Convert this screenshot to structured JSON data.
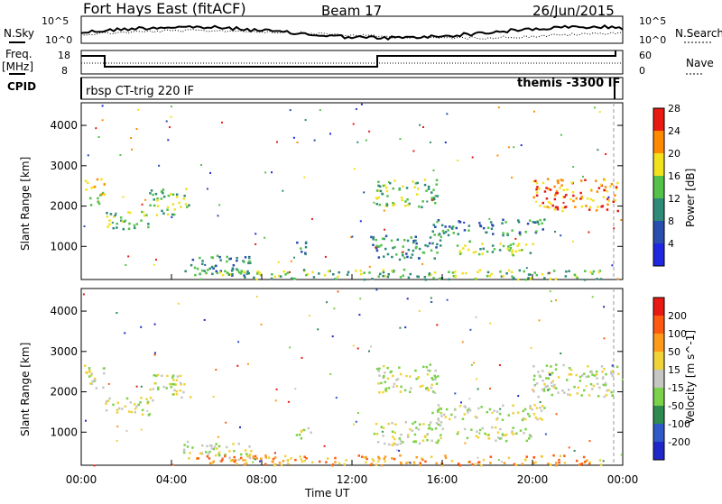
{
  "header": {
    "title": "Fort Hays East (fitACF)",
    "beam": "Beam 17",
    "date": "26/Jun/2015"
  },
  "noise_panel": {
    "left_label": "N.Sky",
    "right_label": "N.Search",
    "left_ticks": [
      "10^5",
      "10^0"
    ],
    "right_ticks": [
      "10^5",
      "10^0"
    ]
  },
  "freq_panel": {
    "left_label_1": "Freq.",
    "left_label_2": "[MHz]",
    "right_label": "Nave",
    "left_ticks": [
      "18",
      "8"
    ],
    "right_ticks": [
      "60",
      "0"
    ]
  },
  "cpid_panel": {
    "label": "CPID",
    "left_mode": "rbsp CT-trig 220 IF",
    "right_mode": "themis -3300 IF"
  },
  "chart_data": [
    {
      "type": "heatmap",
      "name_panel": "power",
      "ylabel": "Slant Range [km]",
      "yticks": [
        1000,
        2000,
        3000,
        4000
      ],
      "ylim": [
        180,
        4560
      ],
      "xlim_hours": [
        0,
        24
      ],
      "colorbar": {
        "label": "Power [dB]",
        "ticks": [
          "4",
          "8",
          "12",
          "16",
          "20",
          "24",
          "28"
        ],
        "colors": [
          "#1f27e0",
          "#2a4db0",
          "#2f8a78",
          "#54c24a",
          "#f2e21e",
          "#ff8a00",
          "#e81a12"
        ]
      },
      "echo_regions": [
        {
          "x0": 0.1,
          "x1": 1.0,
          "y0": 2050,
          "y1": 2700,
          "lvl": 4
        },
        {
          "x0": 1.0,
          "x1": 3.0,
          "y0": 1450,
          "y1": 1900,
          "lvl": 3
        },
        {
          "x0": 3.0,
          "x1": 4.8,
          "y0": 1800,
          "y1": 2450,
          "lvl": 3
        },
        {
          "x0": 4.5,
          "x1": 7.5,
          "y0": 300,
          "y1": 800,
          "lvl": 2
        },
        {
          "x0": 9.5,
          "x1": 10.2,
          "y0": 800,
          "y1": 1150,
          "lvl": 2
        },
        {
          "x0": 13.0,
          "x1": 15.8,
          "y0": 2000,
          "y1": 2700,
          "lvl": 3
        },
        {
          "x0": 12.8,
          "x1": 16.0,
          "y0": 700,
          "y1": 1300,
          "lvl": 2
        },
        {
          "x0": 15.5,
          "x1": 20.5,
          "y0": 1300,
          "y1": 1700,
          "lvl": 2
        },
        {
          "x0": 16.5,
          "x1": 20.0,
          "y0": 800,
          "y1": 1150,
          "lvl": 3
        },
        {
          "x0": 20.0,
          "x1": 23.8,
          "y0": 1900,
          "y1": 2700,
          "lvl": 5
        },
        {
          "x0": 5.0,
          "x1": 23.0,
          "y0": 200,
          "y1": 450,
          "lvl": 3
        }
      ]
    },
    {
      "type": "heatmap",
      "name_panel": "velocity",
      "ylabel": "Slant Range [km]",
      "yticks": [
        1000,
        2000,
        3000,
        4000
      ],
      "ylim": [
        180,
        4560
      ],
      "xlim_hours": [
        0,
        24
      ],
      "xlabel": "Time UT",
      "xticks": [
        "00:00",
        "04:00",
        "08:00",
        "12:00",
        "16:00",
        "20:00",
        "00:00"
      ],
      "colorbar": {
        "label": "Velocity [m s^-1]",
        "ticks": [
          "200",
          "100",
          "50",
          "15",
          "-15",
          "-50",
          "-100",
          "-200"
        ],
        "colors": [
          "#1f27c8",
          "#2f58c8",
          "#2f8a50",
          "#7bd14a",
          "#c6c6c2",
          "#f0d23a",
          "#ff9a1a",
          "#ff5a10",
          "#e81a12"
        ]
      },
      "echo_regions": [
        {
          "x0": 0.1,
          "x1": 1.0,
          "y0": 2050,
          "y1": 2700,
          "lvl": 4
        },
        {
          "x0": 1.0,
          "x1": 3.0,
          "y0": 1450,
          "y1": 1900,
          "lvl": 4
        },
        {
          "x0": 3.0,
          "x1": 4.8,
          "y0": 1800,
          "y1": 2450,
          "lvl": 4
        },
        {
          "x0": 4.5,
          "x1": 7.5,
          "y0": 300,
          "y1": 800,
          "lvl": 4
        },
        {
          "x0": 9.5,
          "x1": 10.2,
          "y0": 800,
          "y1": 1150,
          "lvl": 4
        },
        {
          "x0": 13.0,
          "x1": 15.8,
          "y0": 2000,
          "y1": 2700,
          "lvl": 4
        },
        {
          "x0": 12.8,
          "x1": 16.0,
          "y0": 700,
          "y1": 1300,
          "lvl": 4
        },
        {
          "x0": 15.5,
          "x1": 20.5,
          "y0": 1300,
          "y1": 1700,
          "lvl": 4
        },
        {
          "x0": 16.5,
          "x1": 20.0,
          "y0": 800,
          "y1": 1150,
          "lvl": 4
        },
        {
          "x0": 20.0,
          "x1": 23.8,
          "y0": 1900,
          "y1": 2700,
          "lvl": 4
        },
        {
          "x0": 5.0,
          "x1": 23.0,
          "y0": 200,
          "y1": 450,
          "lvl": 6
        }
      ]
    }
  ]
}
